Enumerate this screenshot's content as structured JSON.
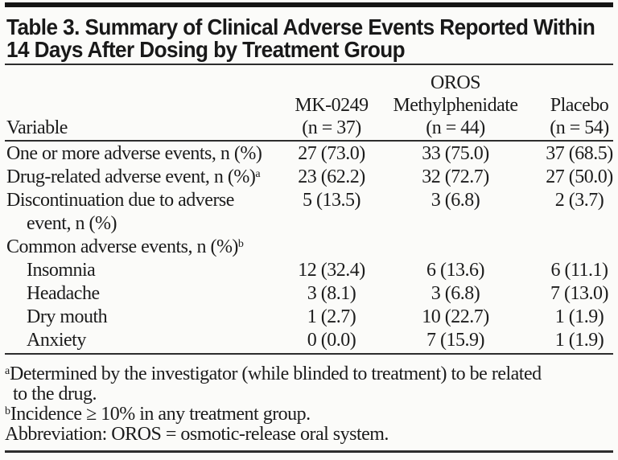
{
  "page": {
    "background": "#fbfbf9",
    "ink": "#1c1c1c",
    "rule_color": "#2d2d2d"
  },
  "table": {
    "title_lines": [
      "Table 3. Summary of Clinical Adverse Events Reported Within",
      "14 Days After Dosing by Treatment Group"
    ],
    "header": {
      "variable_label": "Variable",
      "group_label": "OROS",
      "columns": [
        {
          "name": "MK-0249",
          "n": "(n = 37)"
        },
        {
          "name": "Methylphenidate",
          "n": "(n = 44)"
        },
        {
          "name": "Placebo",
          "n": "(n = 54)"
        }
      ]
    },
    "rows": [
      {
        "label": "One or more adverse events, n (%)",
        "values": [
          "27 (73.0)",
          "33 (75.0)",
          "37 (68.5)"
        ]
      },
      {
        "label": "Drug-related adverse event, n (%)",
        "sup": "a",
        "values": [
          "23 (62.2)",
          "32 (72.7)",
          "27 (50.0)"
        ]
      },
      {
        "label": "Discontinuation due to adverse",
        "label_line2": "event, n (%)",
        "values": [
          "5 (13.5)",
          "3 (6.8)",
          "2 (3.7)"
        ]
      },
      {
        "label": "Common adverse events, n (%)",
        "sup": "b",
        "values": [
          "",
          "",
          ""
        ]
      },
      {
        "label": "Insomnia",
        "indent": true,
        "values": [
          "12 (32.4)",
          "6 (13.6)",
          "6 (11.1)"
        ]
      },
      {
        "label": "Headache",
        "indent": true,
        "values": [
          "3 (8.1)",
          "3 (6.8)",
          "7 (13.0)"
        ]
      },
      {
        "label": "Dry mouth",
        "indent": true,
        "values": [
          "1 (2.7)",
          "10 (22.7)",
          "1 (1.9)"
        ]
      },
      {
        "label": "Anxiety",
        "indent": true,
        "values": [
          "0 (0.0)",
          "7 (15.9)",
          "1 (1.9)"
        ]
      }
    ],
    "footnotes": [
      {
        "marker": "a",
        "line1": "Determined by the investigator (while blinded to treatment) to be related",
        "line2": "to the drug."
      },
      {
        "marker": "b",
        "line1": "Incidence ≥ 10% in any treatment group."
      },
      {
        "marker": "",
        "line1": "Abbreviation: OROS = osmotic-release oral system."
      }
    ]
  }
}
